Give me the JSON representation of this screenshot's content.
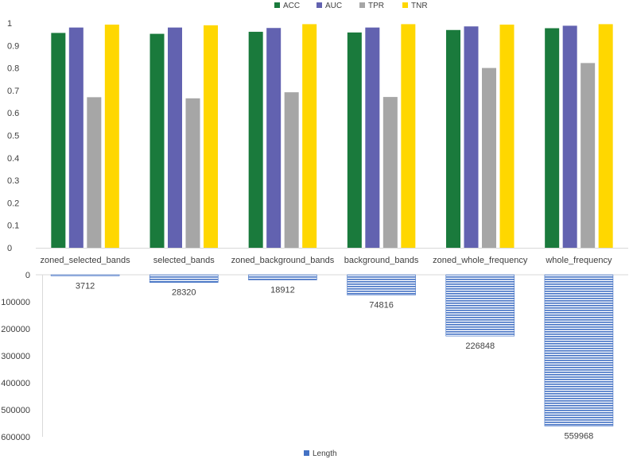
{
  "chart_data": [
    {
      "type": "bar",
      "categories": [
        "zoned_selected_bands",
        "selected_bands",
        "zoned_background_bands",
        "background_bands",
        "zoned_whole_frequency",
        "whole_frequency"
      ],
      "series": [
        {
          "name": "ACC",
          "color": "#1a7a3c",
          "values": [
            0.956,
            0.952,
            0.961,
            0.958,
            0.969,
            0.977
          ]
        },
        {
          "name": "AUC",
          "color": "#6262b0",
          "values": [
            0.98,
            0.98,
            0.978,
            0.98,
            0.985,
            0.988
          ]
        },
        {
          "name": "TPR",
          "color": "#a6a6a6",
          "values": [
            0.67,
            0.665,
            0.692,
            0.671,
            0.8,
            0.822
          ]
        },
        {
          "name": "TNR",
          "color": "#ffd700",
          "values": [
            0.993,
            0.99,
            0.995,
            0.995,
            0.993,
            0.995
          ]
        }
      ],
      "yticks": [
        "0",
        "0.1",
        "0.2",
        "0.3",
        "0.4",
        "0.5",
        "0.6",
        "0.7",
        "0.8",
        "0.9",
        "1"
      ],
      "ylim": [
        0,
        1
      ],
      "grid": false,
      "legend_position": "top"
    },
    {
      "type": "bar",
      "orientation": "downward",
      "categories": [
        "zoned_selected_bands",
        "selected_bands",
        "zoned_background_bands",
        "background_bands",
        "zoned_whole_frequency",
        "whole_frequency"
      ],
      "series": [
        {
          "name": "Length",
          "color": "#4472c4",
          "values": [
            3712,
            28320,
            18912,
            74816,
            226848,
            559968
          ]
        }
      ],
      "data_labels": [
        "3712",
        "28320",
        "18912",
        "74816",
        "226848",
        "559968"
      ],
      "yticks": [
        "0",
        "100000",
        "200000",
        "300000",
        "400000",
        "500000",
        "600000"
      ],
      "ylim": [
        0,
        600000
      ],
      "grid": false,
      "legend_position": "bottom"
    }
  ]
}
